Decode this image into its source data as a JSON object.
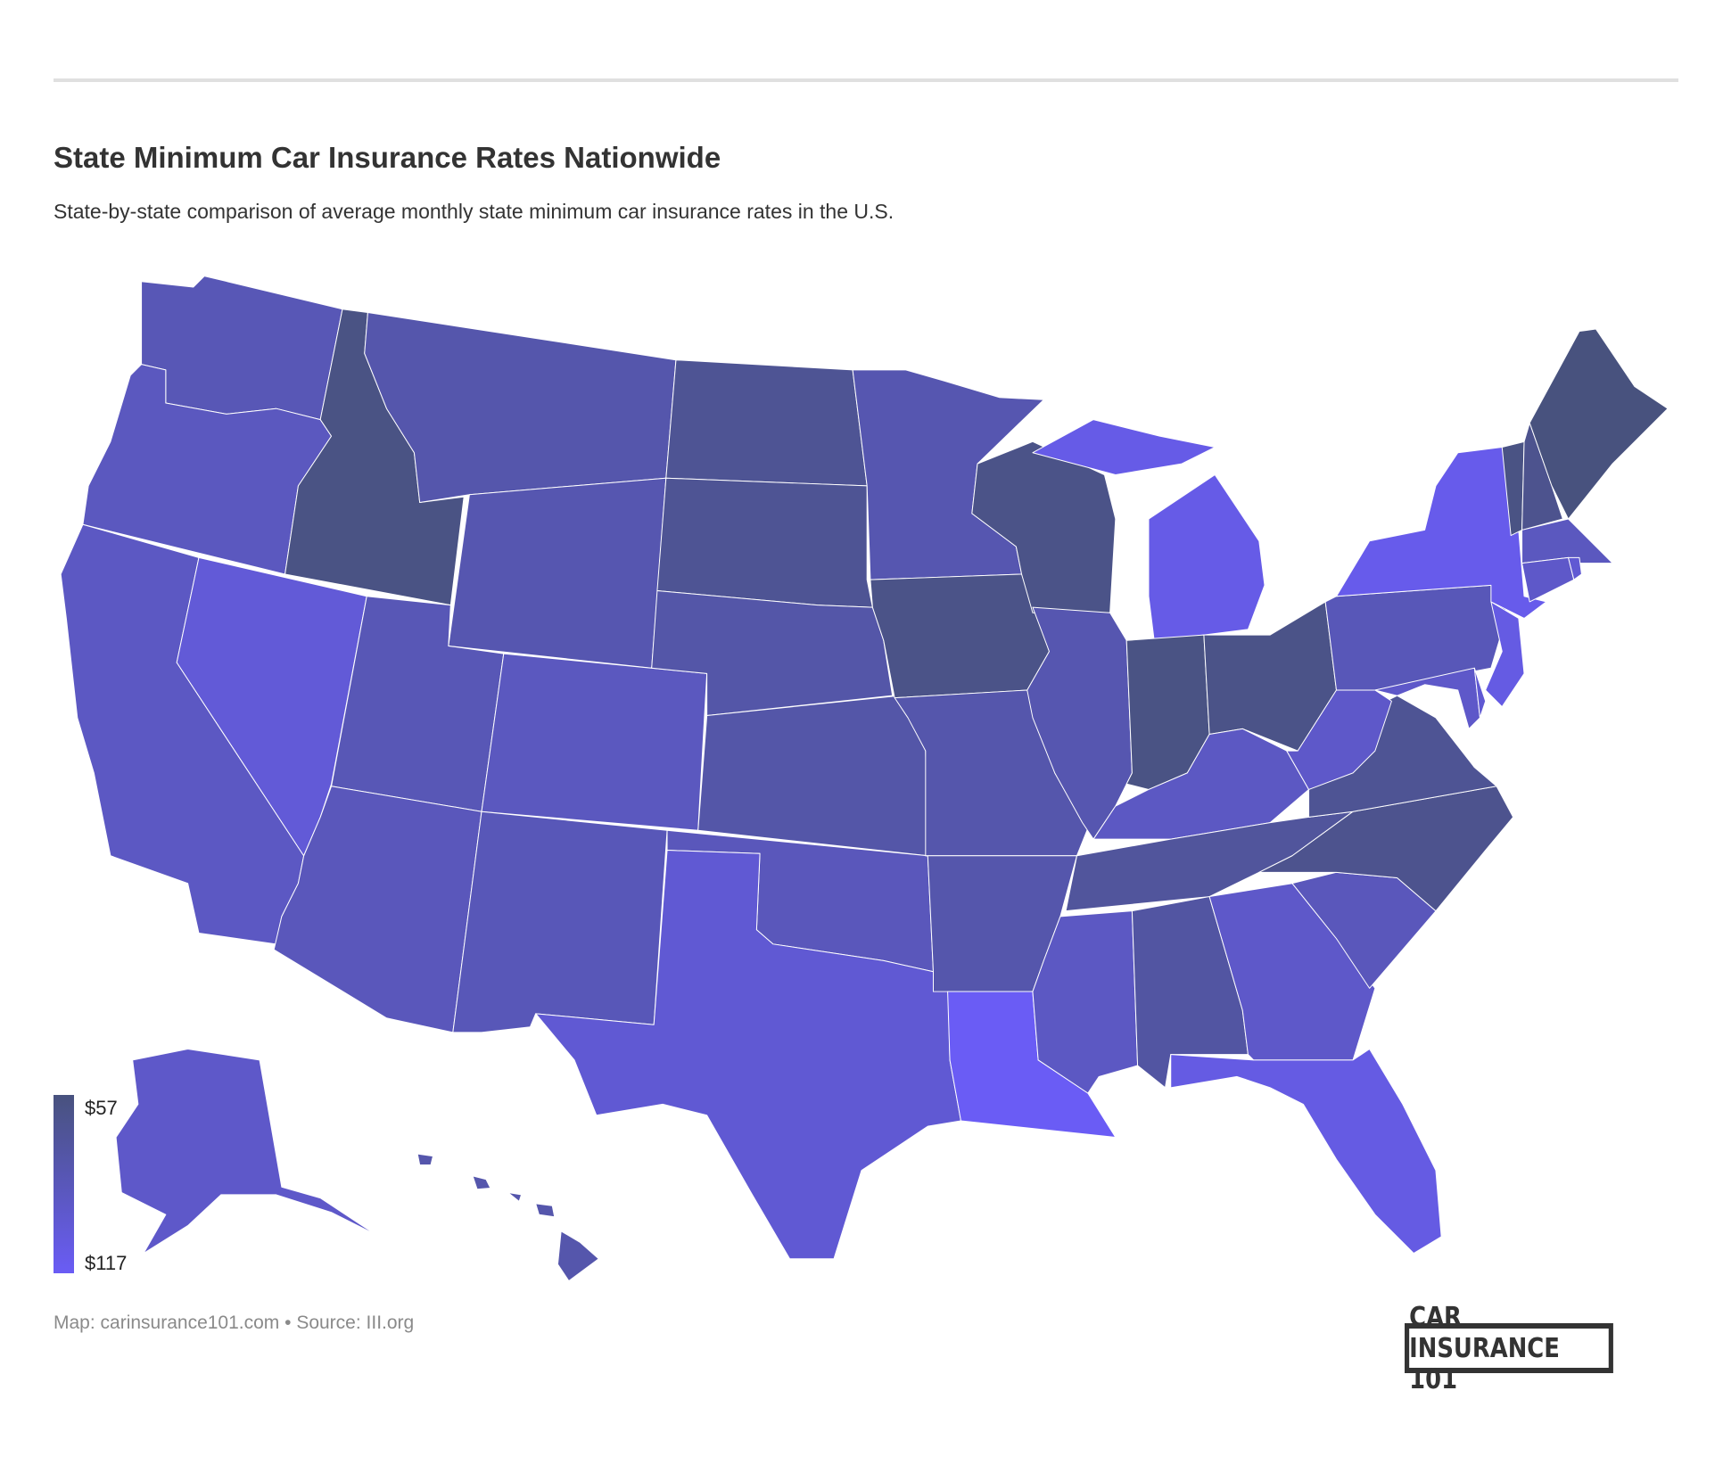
{
  "header": {
    "title": "State Minimum Car Insurance Rates Nationwide",
    "subtitle": "State-by-state comparison of average monthly state minimum car insurance rates in the U.S."
  },
  "legend": {
    "min_label": "$57",
    "max_label": "$117",
    "min_value": 57,
    "max_value": 117,
    "min_color": "#48527e",
    "max_color": "#6a5cf5"
  },
  "footer": {
    "credit": "Map: carinsurance101.com • Source: III.org",
    "logo": "CAR INSURANCE 101"
  },
  "states": {
    "WA": 85,
    "OR": 90,
    "CA": 92,
    "NV": 102,
    "ID": 60,
    "MT": 80,
    "WY": 82,
    "UT": 85,
    "CO": 90,
    "AZ": 88,
    "NM": 86,
    "ND": 68,
    "SD": 68,
    "NE": 78,
    "KS": 78,
    "OK": 88,
    "TX": 100,
    "MN": 82,
    "IA": 62,
    "MO": 80,
    "AR": 80,
    "LA": 117,
    "WI": 62,
    "IL": 82,
    "MI": 110,
    "IN": 60,
    "OH": 62,
    "KY": 92,
    "TN": 72,
    "MS": 92,
    "AL": 75,
    "GA": 95,
    "FL": 108,
    "SC": 88,
    "NC": 65,
    "VA": 68,
    "WV": 95,
    "PA": 86,
    "MD": 95,
    "DE": 100,
    "NJ": 108,
    "NY": 112,
    "VT": 60,
    "NH": 65,
    "ME": 57,
    "MA": 90,
    "CT": 95,
    "RI": 100,
    "AK": 95,
    "HI": 80
  }
}
